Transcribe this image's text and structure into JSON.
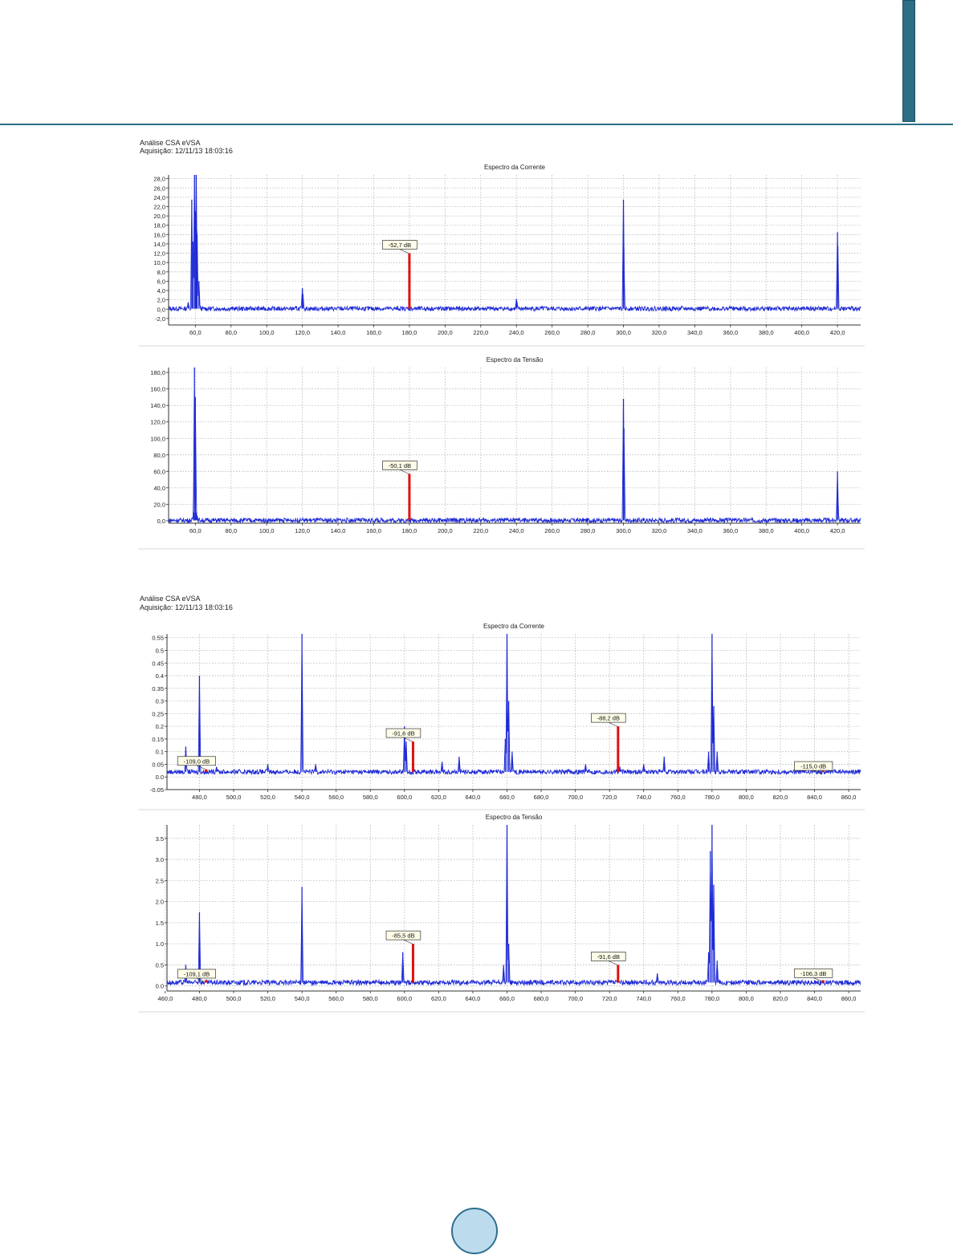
{
  "panels": [
    {
      "title": "Análise CSA eVSA",
      "subtitle": "Aquisição: 12/11/13 18:03:16"
    },
    {
      "title": "Análise CSA eVSA",
      "subtitle": "Aquisição: 12/11/13 18:03:16"
    }
  ],
  "chart_data": [
    {
      "type": "line",
      "title": "Espectro da Corrente",
      "xlim": [
        45,
        433
      ],
      "ylim": [
        -3.4,
        28.8
      ],
      "yticks": [
        "-2,0",
        "0,0",
        "2,0",
        "4,0",
        "6,0",
        "8,0",
        "10,0",
        "12,0",
        "14,0",
        "16,0",
        "18,0",
        "20,0",
        "22,0",
        "24,0",
        "26,0",
        "28,0"
      ],
      "xticks": [
        "60,0",
        "80,0",
        "100,0",
        "120,0",
        "140,0",
        "160,0",
        "180,0",
        "200,0",
        "220,0",
        "240,0",
        "260,0",
        "280,0",
        "300,0",
        "320,0",
        "340,0",
        "360,0",
        "380,0",
        "400,0",
        "420,0"
      ],
      "series": [
        {
          "color": "#1f2bd6",
          "baseline": 0.1,
          "peaks": [
            [
              56,
              1.5
            ],
            [
              58,
              23.5
            ],
            [
              58.6,
              14.5
            ],
            [
              59.5,
              28.8
            ],
            [
              60,
              21
            ],
            [
              60.5,
              28.8
            ],
            [
              61,
              16
            ],
            [
              62,
              6
            ],
            [
              120,
              4.5
            ],
            [
              120.3,
              3.2
            ],
            [
              240,
              2.2
            ],
            [
              240.3,
              1.6
            ],
            [
              300,
              23.5
            ],
            [
              300.2,
              13
            ],
            [
              360,
              0.5
            ],
            [
              420,
              16.5
            ],
            [
              420.2,
              13.5
            ]
          ]
        }
      ],
      "markers": [
        {
          "x": 180,
          "value": 12.0,
          "label": "-52,7 dB"
        }
      ]
    },
    {
      "type": "line",
      "title": "Espectro da Tensão",
      "xlim": [
        45,
        433
      ],
      "ylim": [
        -3,
        186
      ],
      "yticks": [
        "0,0",
        "20,0",
        "40,0",
        "60,0",
        "80,0",
        "100,0",
        "120,0",
        "140,0",
        "160,0",
        "180,0"
      ],
      "xticks": [
        "60,0",
        "80,0",
        "100,0",
        "120,0",
        "140,0",
        "160,0",
        "180,0",
        "200,0",
        "220,0",
        "240,0",
        "260,0",
        "280,0",
        "300,0",
        "320,0",
        "340,0",
        "360,0",
        "380,0",
        "400,0",
        "420,0"
      ],
      "series": [
        {
          "color": "#1f2bd6",
          "baseline": 0.5,
          "peaks": [
            [
              59,
              10
            ],
            [
              59.5,
              186
            ],
            [
              60,
              150
            ],
            [
              60.5,
              10
            ],
            [
              61,
              6
            ],
            [
              120,
              1.5
            ],
            [
              240,
              2.5
            ],
            [
              300,
              148
            ],
            [
              300.3,
              112
            ],
            [
              360,
              3
            ],
            [
              420,
              60
            ],
            [
              420.2,
              20
            ]
          ]
        }
      ],
      "markers": [
        {
          "x": 180,
          "value": 57,
          "label": "-50,1 dB"
        }
      ]
    },
    {
      "type": "line",
      "title": "Espectro da Corrente",
      "xlim": [
        461,
        867
      ],
      "ylim": [
        -0.05,
        0.565
      ],
      "yticks": [
        "-0.05",
        "0.0",
        "0.05",
        "0.1",
        "0.15",
        "0.2",
        "0.25",
        "0.3",
        "0.35",
        "0.4",
        "0.45",
        "0.5",
        "0.55"
      ],
      "xticks": [
        "480,0",
        "500,0",
        "520,0",
        "540,0",
        "560,0",
        "580,0",
        "600,0",
        "620,0",
        "640,0",
        "660,0",
        "680,0",
        "700,0",
        "720,0",
        "740,0",
        "760,0",
        "780,0",
        "800,0",
        "820,0",
        "840,0",
        "860,0"
      ],
      "series": [
        {
          "color": "#1f2bd6",
          "baseline": 0.02,
          "peaks": [
            [
              472,
              0.12
            ],
            [
              480,
              0.4
            ],
            [
              490,
              0.04
            ],
            [
              520,
              0.05
            ],
            [
              540,
              0.565
            ],
            [
              548,
              0.05
            ],
            [
              600,
              0.2
            ],
            [
              601,
              0.14
            ],
            [
              622,
              0.06
            ],
            [
              632,
              0.08
            ],
            [
              659,
              0.15
            ],
            [
              660,
              0.565
            ],
            [
              661,
              0.3
            ],
            [
              663,
              0.1
            ],
            [
              696,
              0.03
            ],
            [
              706,
              0.05
            ],
            [
              724,
              0.03
            ],
            [
              726,
              0.04
            ],
            [
              740,
              0.05
            ],
            [
              752,
              0.08
            ],
            [
              778,
              0.1
            ],
            [
              780,
              0.565
            ],
            [
              781,
              0.28
            ],
            [
              783,
              0.1
            ],
            [
              790,
              0.03
            ],
            [
              812,
              0.03
            ],
            [
              840,
              0.02
            ]
          ]
        }
      ],
      "markers": [
        {
          "x": 484,
          "value": 0.03,
          "label": "-109,0 dB"
        },
        {
          "x": 605,
          "value": 0.14,
          "label": "-91,6 dB"
        },
        {
          "x": 725,
          "value": 0.2,
          "label": "-88,2 dB"
        },
        {
          "x": 845,
          "value": 0.01,
          "label": "-115,0 dB"
        }
      ]
    },
    {
      "type": "line",
      "title": "Espectro da Tensão",
      "xlim": [
        461,
        867
      ],
      "ylim": [
        -0.12,
        3.82
      ],
      "yticks": [
        "0.0",
        "0.5",
        "1.0",
        "1.5",
        "2.0",
        "2.5",
        "3.0",
        "3.5"
      ],
      "xticks": [
        "460,0",
        "480,0",
        "500,0",
        "520,0",
        "540,0",
        "560,0",
        "580,0",
        "600,0",
        "620,0",
        "640,0",
        "660,0",
        "680,0",
        "700,0",
        "720,0",
        "740,0",
        "760,0",
        "780,0",
        "800,0",
        "820,0",
        "840,0",
        "860,0"
      ],
      "series": [
        {
          "color": "#1f2bd6",
          "baseline": 0.08,
          "peaks": [
            [
              472,
              0.5
            ],
            [
              480,
              1.75
            ],
            [
              540,
              2.35
            ],
            [
              599,
              0.8
            ],
            [
              628,
              0.15
            ],
            [
              658,
              0.5
            ],
            [
              660,
              3.82
            ],
            [
              661,
              1.0
            ],
            [
              718,
              0.1
            ],
            [
              748,
              0.3
            ],
            [
              778,
              0.8
            ],
            [
              779,
              3.2
            ],
            [
              780,
              3.82
            ],
            [
              781,
              2.4
            ],
            [
              783,
              0.6
            ],
            [
              790,
              0.1
            ],
            [
              812,
              0.1
            ],
            [
              845,
              0.06
            ]
          ]
        }
      ],
      "markers": [
        {
          "x": 484,
          "value": 0.09,
          "label": "-109,1 dB"
        },
        {
          "x": 605,
          "value": 1.0,
          "label": "-85,5 dB"
        },
        {
          "x": 725,
          "value": 0.5,
          "label": "-91,6 dB"
        },
        {
          "x": 845,
          "value": 0.1,
          "label": "-106,3 dB"
        }
      ]
    }
  ]
}
